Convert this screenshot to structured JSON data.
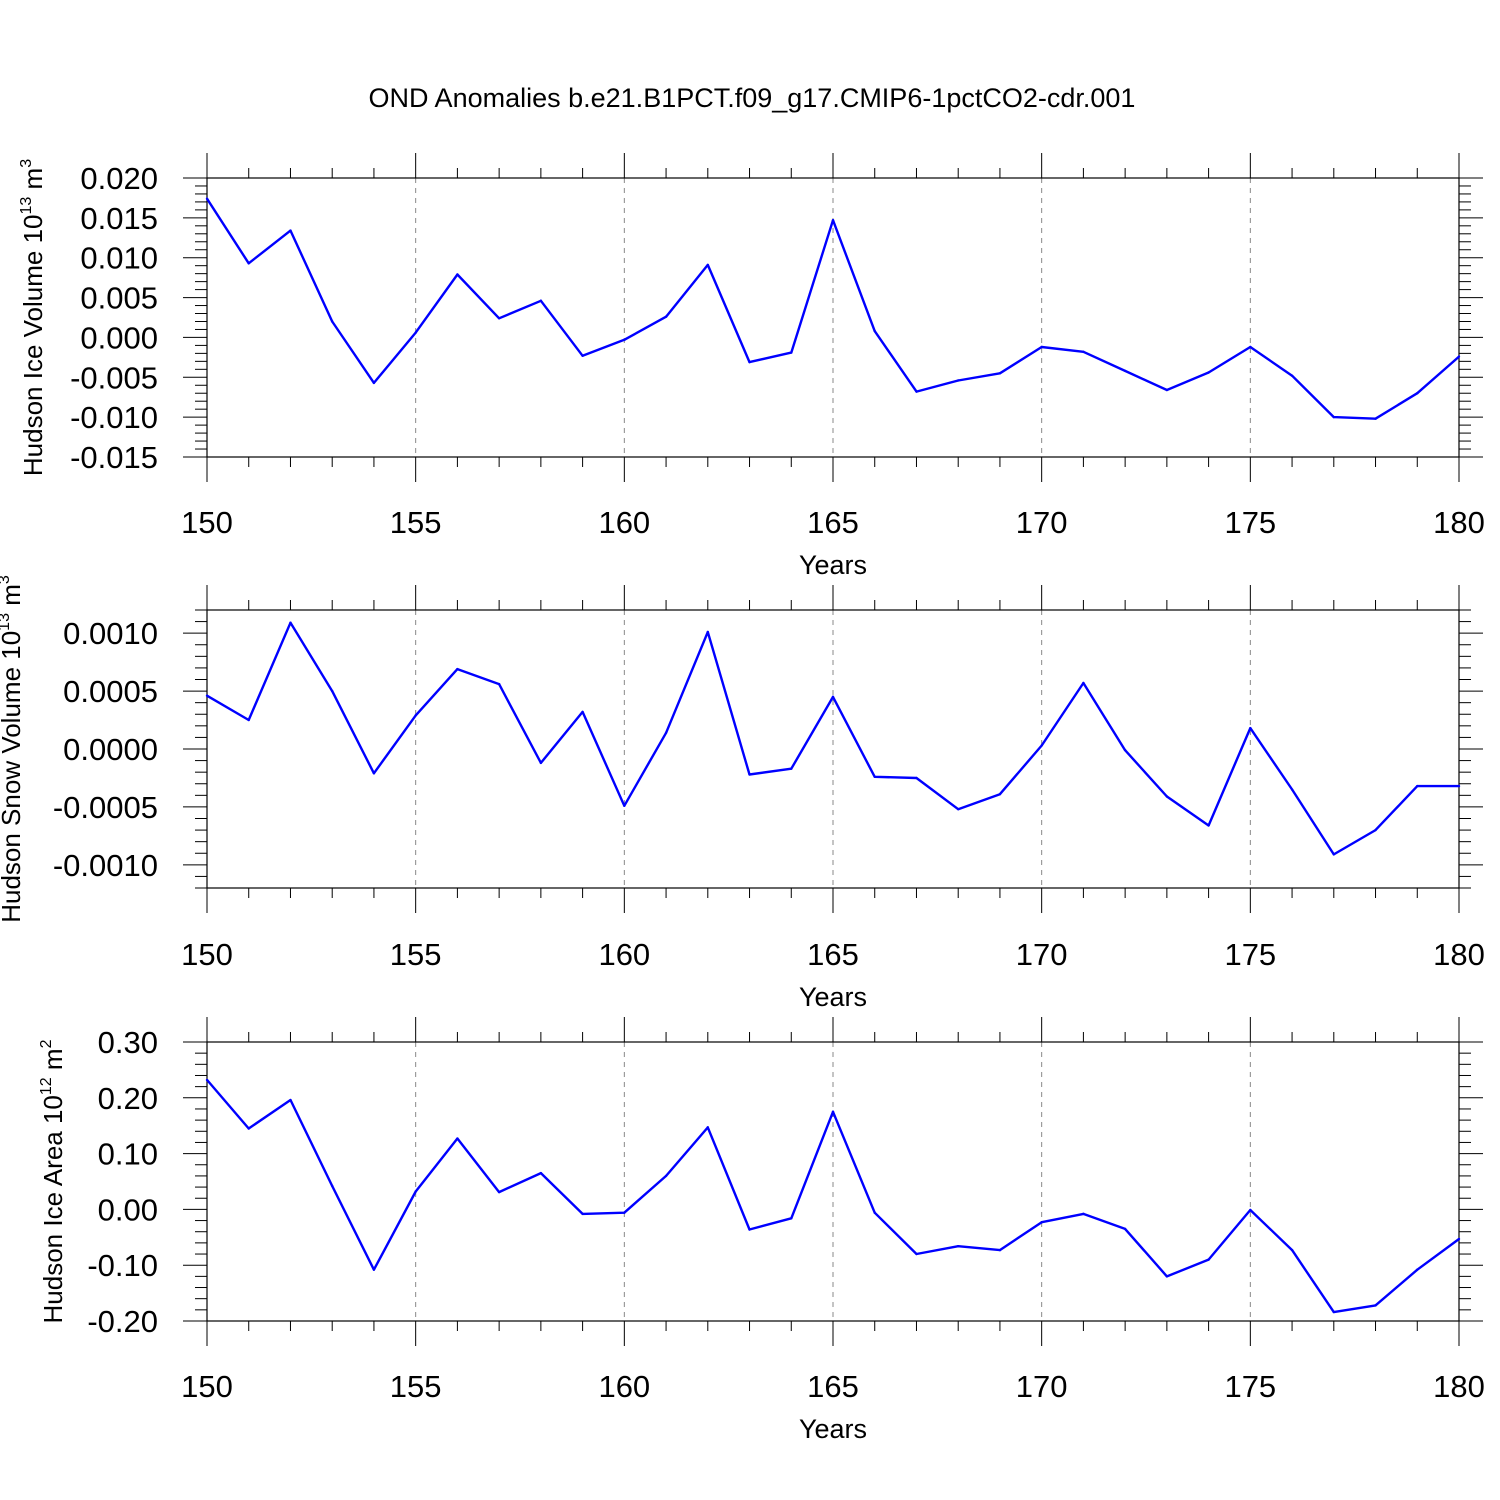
{
  "figure": {
    "title": "OND Anomalies b.e21.B1PCT.f09_g17.CMIP6-1pctCO2-cdr.001",
    "line_color": "#0000ff"
  },
  "chart_data": [
    {
      "type": "line",
      "xlabel": "Years",
      "ylabel": {
        "text": "Hudson Ice Volume 10",
        "exponent": "13",
        "unit": " m",
        "unit_exponent": "3"
      },
      "xlim": [
        150,
        180
      ],
      "ylim": [
        -0.015,
        0.02
      ],
      "xticks": [
        150,
        155,
        160,
        165,
        170,
        175,
        180
      ],
      "yticks": [
        -0.015,
        -0.01,
        -0.005,
        0.0,
        0.005,
        0.01,
        0.015,
        0.02
      ],
      "ytick_labels": [
        "-0.015",
        "-0.010",
        "-0.005",
        "0.000",
        "0.005",
        "0.010",
        "0.015",
        "0.020"
      ],
      "grid": "vertical dashed at major x ticks",
      "x": [
        150,
        151,
        152,
        153,
        154,
        155,
        156,
        157,
        158,
        159,
        160,
        161,
        162,
        163,
        164,
        165,
        166,
        167,
        168,
        169,
        170,
        171,
        172,
        173,
        174,
        175,
        176,
        177,
        178,
        179,
        180
      ],
      "values": [
        0.0174,
        0.0093,
        0.0134,
        0.002,
        -0.0057,
        0.0006,
        0.0079,
        0.0024,
        0.0046,
        -0.0023,
        -0.0003,
        0.0026,
        0.0091,
        -0.0031,
        -0.0019,
        0.0147,
        0.0008,
        -0.0068,
        -0.0054,
        -0.0045,
        -0.0012,
        -0.0018,
        -0.0042,
        -0.0066,
        -0.0044,
        -0.0012,
        -0.0048,
        -0.01,
        -0.0102,
        -0.007,
        -0.0024
      ]
    },
    {
      "type": "line",
      "xlabel": "Years",
      "ylabel": {
        "text": "Hudson Snow Volume 10",
        "exponent": "13",
        "unit": " m",
        "unit_exponent": "3"
      },
      "xlim": [
        150,
        180
      ],
      "ylim": [
        -0.0012,
        0.0012
      ],
      "xticks": [
        150,
        155,
        160,
        165,
        170,
        175,
        180
      ],
      "yticks": [
        -0.001,
        -0.0005,
        0.0,
        0.0005,
        0.001
      ],
      "ytick_labels": [
        "-0.0010",
        "-0.0005",
        "0.0000",
        "0.0005",
        "0.0010"
      ],
      "grid": "vertical dashed at major x ticks",
      "x": [
        150,
        151,
        152,
        153,
        154,
        155,
        156,
        157,
        158,
        159,
        160,
        161,
        162,
        163,
        164,
        165,
        166,
        167,
        168,
        169,
        170,
        171,
        172,
        173,
        174,
        175,
        176,
        177,
        178,
        179,
        180
      ],
      "values": [
        0.00046,
        0.00025,
        0.00109,
        0.0005,
        -0.00021,
        0.00029,
        0.00069,
        0.00056,
        -0.00012,
        0.00032,
        -0.00049,
        0.00014,
        0.00101,
        -0.00022,
        -0.00017,
        0.00045,
        -0.00024,
        -0.00025,
        -0.00052,
        -0.00039,
        3e-05,
        0.00057,
        -1e-05,
        -0.00041,
        -0.00066,
        0.00018,
        -0.00035,
        -0.00091,
        -0.0007,
        -0.00032,
        -0.00032
      ]
    },
    {
      "type": "line",
      "xlabel": "Years",
      "ylabel": {
        "text": "Hudson Ice Area 10",
        "exponent": "12",
        "unit": " m",
        "unit_exponent": "2"
      },
      "xlim": [
        150,
        180
      ],
      "ylim": [
        -0.2,
        0.3
      ],
      "xticks": [
        150,
        155,
        160,
        165,
        170,
        175,
        180
      ],
      "yticks": [
        -0.2,
        -0.1,
        0.0,
        0.1,
        0.2,
        0.3
      ],
      "ytick_labels": [
        "-0.20",
        "-0.10",
        "0.00",
        "0.10",
        "0.20",
        "0.30"
      ],
      "grid": "vertical dashed at major x ticks",
      "x": [
        150,
        151,
        152,
        153,
        154,
        155,
        156,
        157,
        158,
        159,
        160,
        161,
        162,
        163,
        164,
        165,
        166,
        167,
        168,
        169,
        170,
        171,
        172,
        173,
        174,
        175,
        176,
        177,
        178,
        179,
        180
      ],
      "values": [
        0.232,
        0.145,
        0.196,
        0.042,
        -0.108,
        0.032,
        0.127,
        0.031,
        0.065,
        -0.008,
        -0.006,
        0.06,
        0.147,
        -0.036,
        -0.016,
        0.175,
        -0.006,
        -0.08,
        -0.066,
        -0.073,
        -0.023,
        -0.008,
        -0.035,
        -0.12,
        -0.09,
        -0.001,
        -0.073,
        -0.184,
        -0.172,
        -0.108,
        -0.053
      ]
    }
  ]
}
